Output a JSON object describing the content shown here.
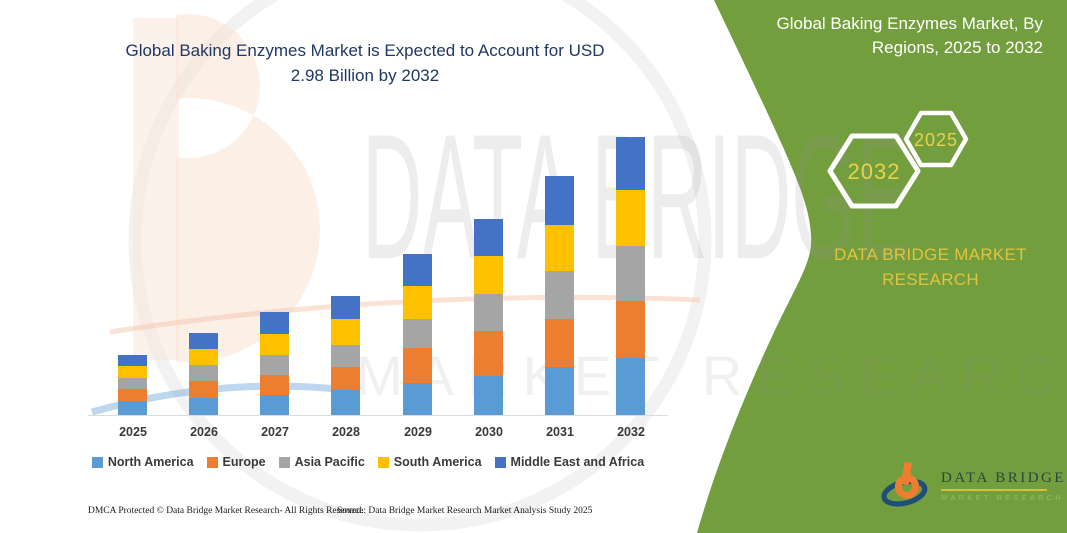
{
  "main_title": {
    "line1": "Global Baking Enzymes Market is Expected to Account for USD",
    "line2": "2.98 Billion by 2032"
  },
  "right_panel": {
    "title_line1": "Global Baking Enzymes Market, By",
    "title_line2": "Regions, 2025 to 2032",
    "hexagon_large_year": "2032",
    "hexagon_small_year": "2025",
    "brand_text": "DATA BRIDGE MARKET RESEARCH",
    "panel_color": "#739E3D",
    "accent_yellow": "#E8D24B"
  },
  "chart_data": {
    "type": "bar",
    "stacked": true,
    "title": "Global Baking Enzymes Market, By Regions, 2025 to 2032",
    "unit": "USD Billion",
    "categories": [
      "2025",
      "2026",
      "2027",
      "2028",
      "2029",
      "2030",
      "2031",
      "2032"
    ],
    "series": [
      {
        "name": "North America",
        "color": "#5B9BD5",
        "values": [
          0.15,
          0.18,
          0.21,
          0.27,
          0.34,
          0.42,
          0.51,
          0.61
        ]
      },
      {
        "name": "Europe",
        "color": "#ED7D31",
        "values": [
          0.13,
          0.18,
          0.21,
          0.25,
          0.37,
          0.48,
          0.51,
          0.61
        ]
      },
      {
        "name": "Asia Pacific",
        "color": "#A5A5A5",
        "values": [
          0.12,
          0.17,
          0.21,
          0.24,
          0.31,
          0.4,
          0.51,
          0.59
        ]
      },
      {
        "name": "South America",
        "color": "#FFC000",
        "values": [
          0.13,
          0.17,
          0.22,
          0.28,
          0.35,
          0.41,
          0.49,
          0.6
        ]
      },
      {
        "name": "Middle East and Africa",
        "color": "#4472C4",
        "values": [
          0.12,
          0.17,
          0.23,
          0.25,
          0.34,
          0.4,
          0.52,
          0.57
        ]
      }
    ],
    "totals": [
      0.65,
      0.87,
      1.08,
      1.29,
      1.71,
      2.11,
      2.54,
      2.98
    ],
    "ylim": [
      0,
      3.2
    ],
    "gridlines": false,
    "y_axis_visible": false,
    "legend_position": "bottom"
  },
  "watermark": {
    "line1": "DATA BRIDGE",
    "line2": "MARKET RESEARCH"
  },
  "logo": {
    "name": "DATA BRIDGE",
    "subtitle": "MARKET RESEARCH"
  },
  "footer": {
    "dmca": "DMCA Protected © Data Bridge Market Research- All Rights Reserved.",
    "source": "Source: Data Bridge Market Research Market Analysis Study 2025"
  }
}
